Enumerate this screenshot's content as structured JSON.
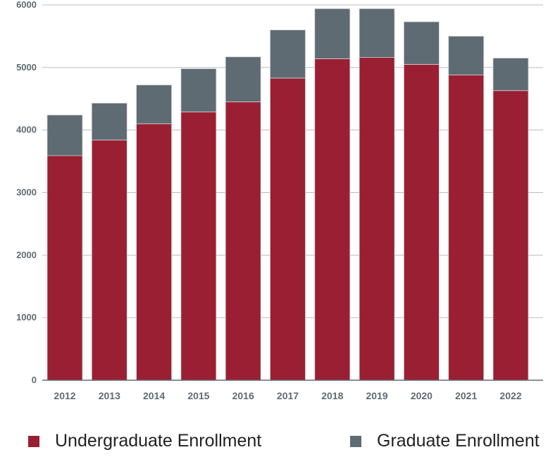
{
  "chart_data": {
    "type": "bar",
    "stacked": true,
    "categories": [
      "2012",
      "2013",
      "2014",
      "2015",
      "2016",
      "2017",
      "2018",
      "2019",
      "2020",
      "2021",
      "2022"
    ],
    "series": [
      {
        "name": "Undergraduate Enrollment",
        "color": "#9a1f33",
        "values": [
          3590,
          3840,
          4100,
          4290,
          4450,
          4830,
          5140,
          5160,
          5050,
          4880,
          4630
        ]
      },
      {
        "name": "Graduate Enrollment",
        "color": "#5f6b73",
        "values": [
          650,
          590,
          620,
          690,
          720,
          770,
          800,
          780,
          680,
          620,
          520
        ]
      }
    ],
    "ylim": [
      0,
      6000
    ],
    "yticks": [
      "0",
      "1000",
      "2000",
      "3000",
      "4000",
      "5000",
      "6000"
    ],
    "grid": true,
    "legend": "bottom",
    "title": "",
    "xlabel": "",
    "ylabel": ""
  }
}
